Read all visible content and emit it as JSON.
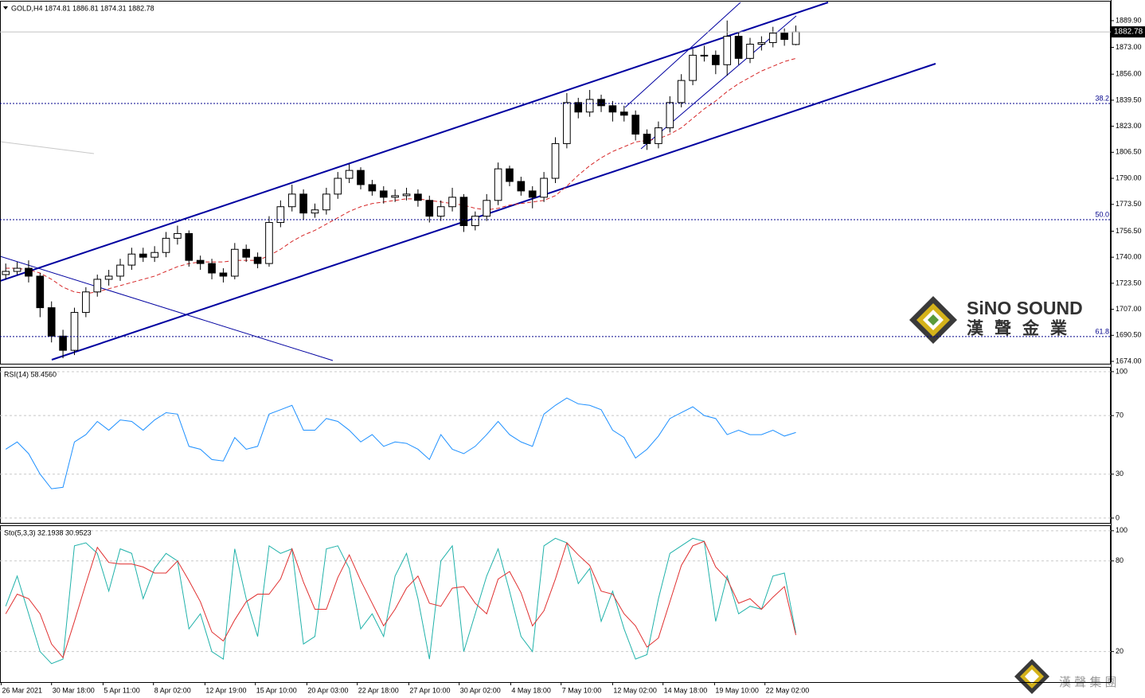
{
  "chart_data": [
    {
      "type": "candlestick",
      "title": "GOLD,H4  1874.81 1886.81 1874.31 1882.78",
      "open": [
        1729,
        1731,
        1733,
        1728,
        1708,
        1690,
        1681,
        1705,
        1718,
        1726,
        1728,
        1735,
        1742,
        1740,
        1743,
        1752,
        1755,
        1738,
        1736,
        1730,
        1728,
        1745,
        1740,
        1736,
        1762,
        1772,
        1780,
        1768,
        1770,
        1780,
        1790,
        1795,
        1786,
        1782,
        1778,
        1779,
        1780,
        1776,
        1766,
        1772,
        1778,
        1760,
        1766,
        1776,
        1796,
        1788,
        1782,
        1778,
        1790,
        1812,
        1838,
        1832,
        1840,
        1836,
        1832,
        1830,
        1818,
        1812,
        1822,
        1838,
        1852,
        1868,
        1868,
        1862,
        1880,
        1866,
        1875,
        1876,
        1882,
        1874.81
      ],
      "high": [
        1736,
        1737,
        1738,
        1730,
        1712,
        1694,
        1708,
        1721,
        1729,
        1732,
        1739,
        1746,
        1746,
        1747,
        1756,
        1760,
        1757,
        1741,
        1739,
        1733,
        1749,
        1748,
        1743,
        1766,
        1776,
        1786,
        1783,
        1774,
        1784,
        1794,
        1799,
        1797,
        1789,
        1785,
        1783,
        1784,
        1783,
        1779,
        1776,
        1784,
        1780,
        1769,
        1780,
        1800,
        1798,
        1791,
        1785,
        1794,
        1816,
        1844,
        1841,
        1846,
        1843,
        1839,
        1836,
        1833,
        1821,
        1826,
        1842,
        1856,
        1872,
        1874,
        1871,
        1890,
        1883,
        1879,
        1880,
        1886,
        1885,
        1886.81
      ],
      "low": [
        1726,
        1729,
        1724,
        1702,
        1686,
        1676,
        1678,
        1702,
        1715,
        1722,
        1725,
        1732,
        1737,
        1737,
        1740,
        1748,
        1734,
        1732,
        1726,
        1724,
        1726,
        1737,
        1733,
        1734,
        1759,
        1769,
        1764,
        1765,
        1767,
        1777,
        1787,
        1783,
        1779,
        1774,
        1775,
        1776,
        1772,
        1762,
        1763,
        1769,
        1756,
        1757,
        1763,
        1773,
        1785,
        1779,
        1771,
        1775,
        1787,
        1809,
        1828,
        1829,
        1832,
        1826,
        1826,
        1814,
        1808,
        1809,
        1819,
        1835,
        1849,
        1864,
        1856,
        1855,
        1862,
        1863,
        1871,
        1873,
        1874,
        1874.31
      ],
      "close": [
        1731,
        1733,
        1728,
        1708,
        1690,
        1681,
        1705,
        1718,
        1726,
        1728,
        1735,
        1742,
        1740,
        1743,
        1752,
        1755,
        1738,
        1736,
        1730,
        1728,
        1745,
        1740,
        1736,
        1762,
        1772,
        1780,
        1768,
        1770,
        1780,
        1790,
        1795,
        1786,
        1782,
        1778,
        1779,
        1780,
        1776,
        1766,
        1772,
        1778,
        1760,
        1766,
        1776,
        1796,
        1788,
        1782,
        1778,
        1790,
        1812,
        1838,
        1832,
        1840,
        1836,
        1832,
        1830,
        1818,
        1812,
        1822,
        1838,
        1852,
        1868,
        1868,
        1862,
        1880,
        1866,
        1875,
        1876,
        1882,
        1878,
        1882.78
      ],
      "up_color": "#ffffff",
      "down_color": "#000000",
      "wick_color": "#000000",
      "ma": {
        "color": "#d62728",
        "values": [
          1733,
          1733,
          1732,
          1730,
          1726,
          1721,
          1718,
          1717,
          1718,
          1720,
          1722,
          1724,
          1726,
          1728,
          1731,
          1734,
          1736,
          1737,
          1737,
          1737,
          1738,
          1738,
          1738,
          1741,
          1745,
          1750,
          1754,
          1757,
          1761,
          1765,
          1769,
          1772,
          1774,
          1775,
          1776,
          1777,
          1777,
          1776,
          1775,
          1774,
          1773,
          1771,
          1770,
          1771,
          1773,
          1774,
          1775,
          1776,
          1779,
          1785,
          1792,
          1798,
          1803,
          1807,
          1810,
          1813,
          1814,
          1815,
          1818,
          1822,
          1828,
          1834,
          1839,
          1845,
          1850,
          1854,
          1858,
          1861,
          1864,
          1866
        ]
      },
      "levels": [
        {
          "value": 1837.4,
          "label": "38.2"
        },
        {
          "value": 1763.8,
          "label": "50.0"
        },
        {
          "value": 1689.7,
          "label": "61.8"
        }
      ],
      "level_color": "#00008b",
      "ylim": [
        1672.5,
        1903.0
      ],
      "yticks": [
        {
          "value": 1889.9,
          "label": "1889.90"
        },
        {
          "value": 1873,
          "label": "1873.00"
        },
        {
          "value": 1856,
          "label": "1856.00"
        },
        {
          "value": 1839.5,
          "label": "1839.50"
        },
        {
          "value": 1823,
          "label": "1823.00"
        },
        {
          "value": 1806.5,
          "label": "1806.50"
        },
        {
          "value": 1790,
          "label": "1790.00"
        },
        {
          "value": 1773.5,
          "label": "1773.50"
        },
        {
          "value": 1756.5,
          "label": "1756.50"
        },
        {
          "value": 1740,
          "label": "1740.00"
        },
        {
          "value": 1723.5,
          "label": "1723.50"
        },
        {
          "value": 1707,
          "label": "1707.00"
        },
        {
          "value": 1690.5,
          "label": "1690.50"
        },
        {
          "value": 1674,
          "label": "1674.00"
        }
      ],
      "xlim": [
        0,
        97
      ],
      "xticks": [
        {
          "value": 0.1,
          "label": "26 Mar 2021"
        },
        {
          "value": 4.5,
          "label": "30 Mar 18:00"
        },
        {
          "value": 9,
          "label": "5 Apr 11:00"
        },
        {
          "value": 13.4,
          "label": "8 Apr 02:00"
        },
        {
          "value": 17.9,
          "label": "12 Apr 19:00"
        },
        {
          "value": 22.3,
          "label": "15 Apr 10:00"
        },
        {
          "value": 26.8,
          "label": "20 Apr 03:00"
        },
        {
          "value": 31.2,
          "label": "22 Apr 18:00"
        },
        {
          "value": 35.7,
          "label": "27 Apr 10:00"
        },
        {
          "value": 40.1,
          "label": "30 Apr 02:00"
        },
        {
          "value": 44.6,
          "label": "4 May 18:00"
        },
        {
          "value": 49,
          "label": "7 May 10:00"
        },
        {
          "value": 53.5,
          "label": "12 May 02:00"
        },
        {
          "value": 57.9,
          "label": "14 May 18:00"
        },
        {
          "value": 62.4,
          "label": "19 May 10:00"
        },
        {
          "value": 66.8,
          "label": "22 May 02:00"
        }
      ],
      "grid": false
    },
    {
      "type": "line",
      "title": "RSI(14) 58.4560",
      "series": [
        {
          "color": "#1e90ff",
          "values": [
            47,
            52,
            44,
            30,
            20,
            21,
            52,
            57,
            66,
            60,
            67,
            66,
            60,
            67,
            72,
            71,
            49,
            47,
            40,
            39,
            55,
            47,
            49,
            71,
            74,
            77,
            60,
            60,
            68,
            66,
            60,
            52,
            57,
            49,
            52,
            51,
            47,
            40,
            57,
            47,
            44,
            49,
            57,
            66,
            57,
            52,
            49,
            71,
            77,
            82,
            78,
            77,
            74,
            60,
            55,
            41,
            47,
            56,
            68,
            72,
            76,
            70,
            68,
            57,
            60,
            57,
            57,
            60,
            56,
            58.456
          ]
        }
      ],
      "ylim": [
        -3.3,
        102.7
      ],
      "yticks": [
        100,
        70,
        30,
        0
      ],
      "grid": true
    },
    {
      "type": "line",
      "title": "Sto(5,3,3) 32.1938 30.9523",
      "series": [
        {
          "color": "#20b2aa",
          "values": [
            50,
            70,
            45,
            20,
            12,
            15,
            90,
            92,
            85,
            60,
            88,
            85,
            55,
            75,
            85,
            80,
            35,
            45,
            20,
            15,
            88,
            55,
            30,
            90,
            85,
            88,
            25,
            30,
            88,
            90,
            75,
            35,
            45,
            30,
            70,
            85,
            55,
            15,
            80,
            90,
            20,
            45,
            70,
            88,
            60,
            30,
            20,
            90,
            95,
            92,
            65,
            75,
            40,
            60,
            35,
            15,
            18,
            55,
            85,
            90,
            95,
            93,
            40,
            70,
            45,
            50,
            48,
            70,
            72,
            32.1938
          ]
        },
        {
          "color": "#e03030",
          "values": [
            45,
            58,
            55,
            45,
            25,
            16,
            40,
            65,
            89,
            79,
            78,
            78,
            76,
            72,
            72,
            80,
            67,
            53,
            33,
            27,
            41,
            53,
            58,
            58,
            68,
            88,
            66,
            48,
            48,
            69,
            84,
            67,
            52,
            37,
            48,
            62,
            70,
            52,
            50,
            62,
            63,
            52,
            45,
            68,
            73,
            59,
            37,
            47,
            68,
            92,
            84,
            77,
            60,
            58,
            45,
            37,
            23,
            29,
            53,
            77,
            90,
            93,
            76,
            68,
            52,
            55,
            48,
            56,
            63,
            30.9523
          ]
        }
      ],
      "ylim": [
        -0.2,
        103.6
      ],
      "yticks": [
        100,
        80,
        20
      ],
      "grid": true
    }
  ],
  "watermark": {
    "brand": "SiNO SOUND",
    "chinese": "漢聲金業",
    "footer": "漢 聲 集 團"
  }
}
